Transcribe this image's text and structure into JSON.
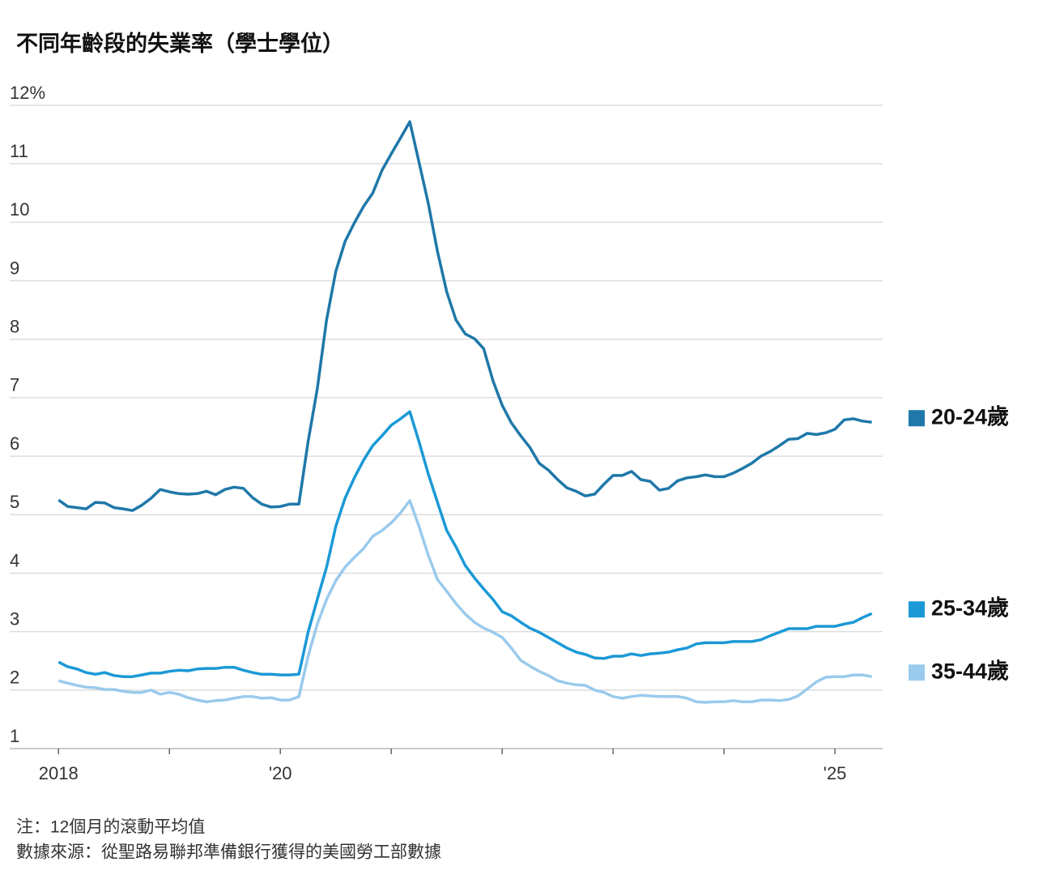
{
  "chart_data": {
    "type": "line",
    "title": "不同年齡段的失業率（學士學位）",
    "notes": [
      "注：12個月的滾動平均值",
      "數據來源：從聖路易聯邦準備銀行獲得的美國勞工部數據"
    ],
    "x": [
      2018,
      2018.083,
      2018.167,
      2018.25,
      2018.333,
      2018.417,
      2018.5,
      2018.583,
      2018.667,
      2018.75,
      2018.833,
      2018.917,
      2019,
      2019.083,
      2019.167,
      2019.25,
      2019.333,
      2019.417,
      2019.5,
      2019.583,
      2019.667,
      2019.75,
      2019.833,
      2019.917,
      2020,
      2020.083,
      2020.167,
      2020.25,
      2020.333,
      2020.417,
      2020.5,
      2020.583,
      2020.667,
      2020.75,
      2020.833,
      2020.917,
      2021,
      2021.083,
      2021.167,
      2021.25,
      2021.333,
      2021.417,
      2021.5,
      2021.583,
      2021.667,
      2021.75,
      2021.833,
      2021.917,
      2022,
      2022.083,
      2022.167,
      2022.25,
      2022.333,
      2022.417,
      2022.5,
      2022.583,
      2022.667,
      2022.75,
      2022.833,
      2022.917,
      2023,
      2023.083,
      2023.167,
      2023.25,
      2023.333,
      2023.417,
      2023.5,
      2023.583,
      2023.667,
      2023.75,
      2023.833,
      2023.917,
      2024,
      2024.083,
      2024.167,
      2024.25,
      2024.333,
      2024.417,
      2024.5,
      2024.583,
      2024.667,
      2024.75,
      2024.833,
      2024.917,
      2025,
      2025.083,
      2025.167,
      2025.25,
      2025.333
    ],
    "series": [
      {
        "name": "20-24歲",
        "color": "#1f78a9",
        "values": [
          5.25,
          5.14,
          5.12,
          5.1,
          5.21,
          5.2,
          5.12,
          5.1,
          5.07,
          5.16,
          5.28,
          5.43,
          5.39,
          5.36,
          5.35,
          5.36,
          5.4,
          5.34,
          5.43,
          5.47,
          5.45,
          5.29,
          5.18,
          5.13,
          5.14,
          5.18,
          5.18,
          6.25,
          7.15,
          8.33,
          9.16,
          9.67,
          9.99,
          10.27,
          10.5,
          10.89,
          11.17,
          11.44,
          11.72,
          11.03,
          10.33,
          9.5,
          8.81,
          8.33,
          8.09,
          8.01,
          7.84,
          7.29,
          6.87,
          6.57,
          6.35,
          6.15,
          5.88,
          5.76,
          5.6,
          5.46,
          5.4,
          5.32,
          5.35,
          5.52,
          5.67,
          5.67,
          5.74,
          5.6,
          5.57,
          5.42,
          5.45,
          5.58,
          5.63,
          5.65,
          5.68,
          5.65,
          5.65,
          5.71,
          5.79,
          5.88,
          6.0,
          6.08,
          6.18,
          6.29,
          6.3,
          6.39,
          6.37,
          6.4,
          6.46,
          6.62,
          6.64,
          6.6,
          6.58
        ]
      },
      {
        "name": "25-34歲",
        "color": "#1b99d6",
        "values": [
          2.48,
          2.4,
          2.36,
          2.3,
          2.27,
          2.3,
          2.25,
          2.23,
          2.23,
          2.26,
          2.29,
          2.29,
          2.32,
          2.34,
          2.33,
          2.36,
          2.37,
          2.37,
          2.39,
          2.39,
          2.34,
          2.3,
          2.27,
          2.27,
          2.26,
          2.26,
          2.27,
          2.99,
          3.55,
          4.1,
          4.8,
          5.28,
          5.63,
          5.93,
          6.18,
          6.35,
          6.53,
          6.64,
          6.76,
          6.25,
          5.7,
          5.21,
          4.73,
          4.45,
          4.13,
          3.92,
          3.73,
          3.55,
          3.34,
          3.27,
          3.16,
          3.06,
          2.99,
          2.9,
          2.81,
          2.72,
          2.65,
          2.61,
          2.55,
          2.54,
          2.58,
          2.58,
          2.62,
          2.59,
          2.62,
          2.63,
          2.65,
          2.69,
          2.72,
          2.79,
          2.81,
          2.81,
          2.81,
          2.83,
          2.83,
          2.83,
          2.86,
          2.93,
          2.99,
          3.05,
          3.05,
          3.05,
          3.09,
          3.09,
          3.09,
          3.13,
          3.16,
          3.24,
          3.31
        ]
      },
      {
        "name": "35-44歲",
        "color": "#9acaec",
        "values": [
          2.16,
          2.12,
          2.08,
          2.05,
          2.04,
          2.01,
          2.01,
          1.98,
          1.96,
          1.96,
          2.0,
          1.93,
          1.96,
          1.93,
          1.87,
          1.83,
          1.8,
          1.82,
          1.83,
          1.86,
          1.89,
          1.89,
          1.86,
          1.87,
          1.83,
          1.83,
          1.89,
          2.58,
          3.13,
          3.55,
          3.87,
          4.1,
          4.27,
          4.42,
          4.63,
          4.73,
          4.86,
          5.03,
          5.24,
          4.8,
          4.31,
          3.89,
          3.69,
          3.48,
          3.3,
          3.16,
          3.06,
          2.99,
          2.9,
          2.72,
          2.51,
          2.41,
          2.32,
          2.25,
          2.16,
          2.12,
          2.09,
          2.08,
          2.0,
          1.96,
          1.89,
          1.86,
          1.89,
          1.91,
          1.9,
          1.89,
          1.89,
          1.89,
          1.86,
          1.8,
          1.79,
          1.8,
          1.8,
          1.82,
          1.8,
          1.8,
          1.83,
          1.83,
          1.82,
          1.84,
          1.9,
          2.02,
          2.14,
          2.22,
          2.23,
          2.23,
          2.26,
          2.26,
          2.23
        ]
      }
    ],
    "xlim": [
      2017.56,
      2025.43
    ],
    "xticks": [
      2018,
      {
        "value": 2019,
        "label": null
      },
      {
        "value": 2020,
        "label": "'20"
      },
      {
        "value": 2021,
        "label": null
      },
      {
        "value": 2022,
        "label": null
      },
      {
        "value": 2023,
        "label": null
      },
      {
        "value": 2024,
        "label": null
      },
      {
        "value": 2025,
        "label": "'25"
      }
    ],
    "ylim": [
      1,
      12
    ],
    "yticks": [
      1,
      2,
      3,
      4,
      5,
      6,
      7,
      8,
      9,
      10,
      11,
      {
        "value": 12,
        "label": "12%"
      }
    ],
    "grid": true
  }
}
